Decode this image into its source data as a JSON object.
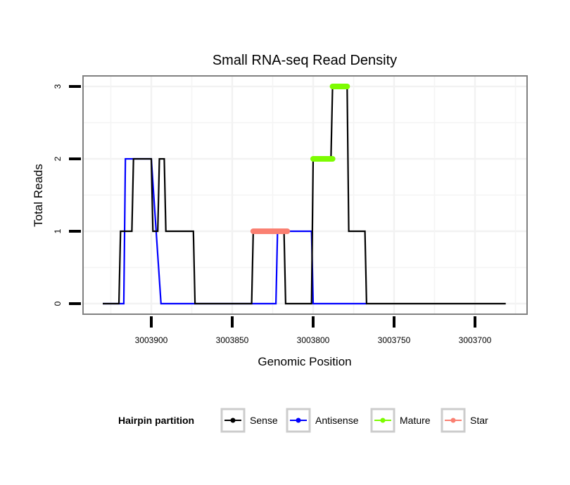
{
  "chart_data": {
    "type": "line",
    "title": "Small RNA-seq Read Density",
    "xlabel": "Genomic Position",
    "ylabel": "Total Reads",
    "x_reversed": true,
    "xlim": [
      3003943,
      3003668
    ],
    "ylim": [
      -0.15,
      3.15
    ],
    "x_ticks": [
      3003900,
      3003850,
      3003800,
      3003750,
      3003700
    ],
    "x_tick_labels": [
      "3003900",
      "3003850",
      "3003800",
      "3003750",
      "3003700"
    ],
    "y_ticks": [
      0,
      1,
      2,
      3
    ],
    "y_tick_labels": [
      "0",
      "1",
      "2",
      "3"
    ],
    "grid": true,
    "legend": {
      "title": "Hairpin partition",
      "placement": "bottom",
      "entries": [
        "Sense",
        "Antisense",
        "Mature",
        "Star"
      ]
    },
    "series": [
      {
        "name": "Sense",
        "color": "#000000",
        "points": [
          [
            3003930,
            0
          ],
          [
            3003920,
            0
          ],
          [
            3003919,
            1
          ],
          [
            3003912,
            1
          ],
          [
            3003911,
            2
          ],
          [
            3003900,
            2
          ],
          [
            3003899,
            1
          ],
          [
            3003896,
            1
          ],
          [
            3003895,
            2
          ],
          [
            3003892,
            2
          ],
          [
            3003891,
            1
          ],
          [
            3003874,
            1
          ],
          [
            3003873,
            0
          ],
          [
            3003838,
            0
          ],
          [
            3003837,
            1
          ],
          [
            3003818,
            1
          ],
          [
            3003817,
            0
          ],
          [
            3003801,
            0
          ],
          [
            3003800,
            2
          ],
          [
            3003789,
            2
          ],
          [
            3003788,
            3
          ],
          [
            3003779,
            3
          ],
          [
            3003778,
            1
          ],
          [
            3003768,
            1
          ],
          [
            3003767,
            0
          ],
          [
            3003681,
            0
          ]
        ]
      },
      {
        "name": "Antisense",
        "color": "#0000ff",
        "points": [
          [
            3003930,
            0
          ],
          [
            3003917,
            0
          ],
          [
            3003916,
            2
          ],
          [
            3003900,
            2
          ],
          [
            3003894,
            0
          ],
          [
            3003823,
            0
          ],
          [
            3003822,
            1
          ],
          [
            3003801,
            1
          ],
          [
            3003800,
            0
          ],
          [
            3003767,
            0
          ]
        ]
      },
      {
        "name": "Mature",
        "color": "#7cfc00",
        "segments": [
          [
            3003800,
            3003788,
            2
          ],
          [
            3003788,
            3003779,
            3
          ]
        ]
      },
      {
        "name": "Star",
        "color": "#fa8072",
        "segments": [
          [
            3003837,
            3003816,
            1
          ]
        ]
      }
    ]
  }
}
